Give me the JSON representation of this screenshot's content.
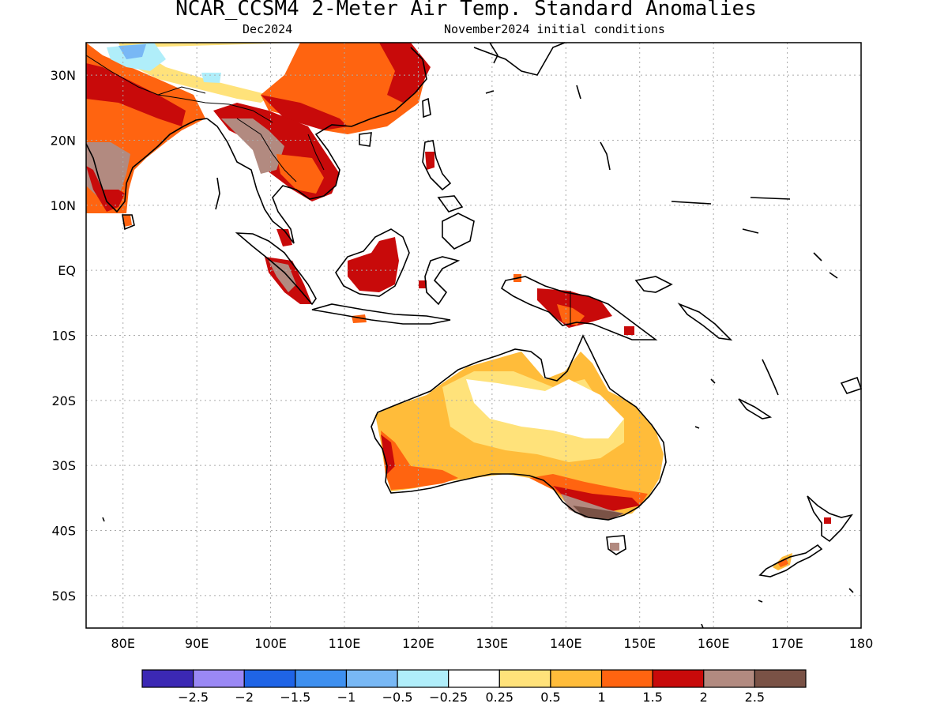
{
  "title": "NCAR_CCSM4 2-Meter Air Temp. Standard Anomalies",
  "subtitle_left": "Dec2024",
  "subtitle_right": "November2024 initial conditions",
  "lat_ticks": [
    {
      "label": "30N",
      "value": 30
    },
    {
      "label": "20N",
      "value": 20
    },
    {
      "label": "10N",
      "value": 10
    },
    {
      "label": "EQ",
      "value": 0
    },
    {
      "label": "10S",
      "value": -10
    },
    {
      "label": "20S",
      "value": -20
    },
    {
      "label": "30S",
      "value": -30
    },
    {
      "label": "40S",
      "value": -40
    },
    {
      "label": "50S",
      "value": -50
    }
  ],
  "lon_ticks": [
    {
      "label": "80E",
      "value": 80
    },
    {
      "label": "90E",
      "value": 90
    },
    {
      "label": "100E",
      "value": 100
    },
    {
      "label": "110E",
      "value": 110
    },
    {
      "label": "120E",
      "value": 120
    },
    {
      "label": "130E",
      "value": 130
    },
    {
      "label": "140E",
      "value": 140
    },
    {
      "label": "150E",
      "value": 150
    },
    {
      "label": "160E",
      "value": 160
    },
    {
      "label": "170E",
      "value": 170
    },
    {
      "label": "180",
      "value": 180
    }
  ],
  "extent": {
    "lon": [
      75,
      180
    ],
    "lat": [
      -55,
      35
    ]
  },
  "colorbar": {
    "colors": [
      "#3b28b4",
      "#9a88f5",
      "#1f64e6",
      "#3e90f0",
      "#78b8f5",
      "#b0eefa",
      "#ffffff",
      "#ffe27a",
      "#ffbc3a",
      "#ff6410",
      "#c80a0a",
      "#b28a80",
      "#7a5246"
    ],
    "labels": [
      "−2.5",
      "−2",
      "−1.5",
      "−1",
      "−0.5",
      "−0.25",
      "0.25",
      "0.5",
      "1",
      "1.5",
      "2",
      "2.5"
    ]
  },
  "chart_data": {
    "type": "heatmap",
    "title": "NCAR_CCSM4 2-Meter Air Temp. Standard Anomalies",
    "subtitle": "Dec2024 — November2024 initial conditions",
    "x_range_lon": [
      75,
      180
    ],
    "y_range_lat": [
      -55,
      35
    ],
    "grid": true,
    "colorbar_levels": [
      -2.5,
      -2,
      -1.5,
      -1,
      -0.5,
      -0.25,
      0.25,
      0.5,
      1,
      1.5,
      2,
      2.5
    ],
    "regions": [
      {
        "name_hint": "South China / Indochina",
        "anomaly_range": [
          1.5,
          2.5
        ]
      },
      {
        "name_hint": "India / Bay of Bengal coast",
        "anomaly_range": [
          1,
          2.5
        ]
      },
      {
        "name_hint": "Tibetan Plateau",
        "anomaly_range": [
          -0.5,
          0.5
        ]
      },
      {
        "name_hint": "Borneo",
        "anomaly_range": [
          1.5,
          2
        ]
      },
      {
        "name_hint": "New Guinea",
        "anomaly_range": [
          1.5,
          2
        ]
      },
      {
        "name_hint": "Interior Australia",
        "anomaly_range": [
          0.25,
          0.5
        ]
      },
      {
        "name_hint": "Western/Southern Australia",
        "anomaly_range": [
          1,
          2.5
        ]
      },
      {
        "name_hint": "New Zealand South Island",
        "anomaly_range": [
          1,
          1.5
        ]
      }
    ]
  }
}
